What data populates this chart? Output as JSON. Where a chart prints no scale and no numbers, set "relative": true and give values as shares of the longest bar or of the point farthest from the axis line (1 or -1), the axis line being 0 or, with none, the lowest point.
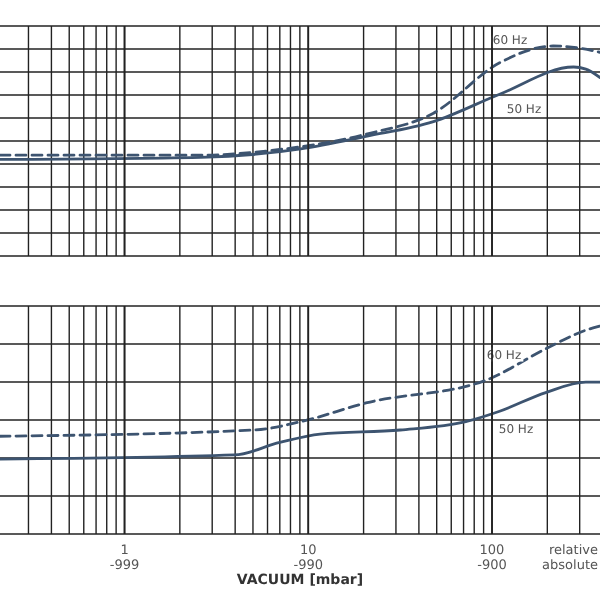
{
  "chart_data": [
    {
      "type": "line",
      "relative": true,
      "log": "x",
      "grid": true,
      "tick_labels": false,
      "xlim": [
        0.21,
        387
      ],
      "xticks": [
        {
          "value": 1,
          "label": null
        },
        {
          "value": 10,
          "label": null
        },
        {
          "value": 100,
          "label": null
        }
      ],
      "series": [
        {
          "name": "60 Hz",
          "color": "#3d5470",
          "line_style": "dashed",
          "x": [
            0.21,
            2.6,
            5.9,
            20.6,
            48,
            110,
            215,
            300,
            387
          ],
          "values": [
            0.48,
            0.48,
            0.5,
            0.58,
            0.68,
            0.92,
            1.0,
            0.99,
            0.97
          ]
        },
        {
          "name": "50 Hz",
          "color": "#3d5470",
          "line_style": "solid",
          "x": [
            0.21,
            2.6,
            9.1,
            20.6,
            48,
            110,
            278,
            324,
            387
          ],
          "values": [
            0.46,
            0.47,
            0.51,
            0.57,
            0.64,
            0.77,
            0.9,
            0.89,
            0.85
          ]
        }
      ]
    },
    {
      "type": "line",
      "relative": true,
      "log": "x",
      "grid": true,
      "tick_labels": "x",
      "xlim": [
        0.21,
        387
      ],
      "xlabel": "VACUUM [mbar]",
      "xticks": [
        1,
        10,
        100
      ],
      "annotations": [
        "-999",
        "-990",
        "-900",
        "relative",
        "absolute"
      ],
      "series": [
        {
          "name": "60 Hz",
          "color": "#3d5470",
          "line_style": "dashed",
          "x": [
            0.21,
            5.1,
            9.1,
            20.6,
            93,
            196,
            324,
            387
          ],
          "values": [
            0.47,
            0.5,
            0.54,
            0.63,
            0.74,
            0.89,
            0.98,
            1.0
          ]
        },
        {
          "name": "50 Hz",
          "color": "#3d5470",
          "line_style": "solid",
          "x": [
            0.21,
            3.96,
            7.0,
            11.6,
            31.7,
            72,
            110,
            196,
            324,
            387
          ],
          "values": [
            0.36,
            0.38,
            0.44,
            0.48,
            0.5,
            0.54,
            0.59,
            0.68,
            0.73,
            0.73
          ]
        }
      ]
    }
  ]
}
